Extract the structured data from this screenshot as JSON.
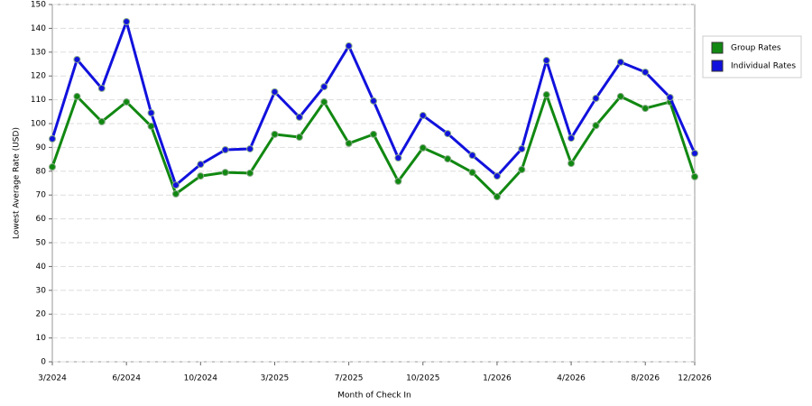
{
  "chart_data": {
    "type": "line",
    "x_label": "Month of Check In",
    "y_label": "Lowest Average Rate (USD)",
    "categories": [
      "3/2024",
      null,
      null,
      "6/2024",
      null,
      null,
      "10/2024",
      null,
      null,
      "3/2025",
      null,
      null,
      "7/2025",
      null,
      null,
      "10/2025",
      null,
      null,
      "1/2026",
      null,
      null,
      "4/2026",
      null,
      null,
      "8/2026",
      null,
      "12/2026"
    ],
    "series": [
      {
        "name": "Group Rates",
        "color": "#118811",
        "values": [
          81.8,
          111.4,
          100.8,
          109.1,
          98.9,
          70.5,
          78,
          79.5,
          79.2,
          95.5,
          94.3,
          109.1,
          91.7,
          95.5,
          75.8,
          89.8,
          85.2,
          79.5,
          69.3,
          80.7,
          112.1,
          83.3,
          99.2,
          111.4,
          106.4,
          109.1,
          77.7
        ]
      },
      {
        "name": "Individual Rates",
        "color": "#1111dd",
        "values": [
          93.6,
          126.9,
          114.8,
          142.8,
          104.5,
          74.2,
          82.9,
          89,
          89.4,
          113.3,
          102.7,
          115.5,
          132.6,
          109.5,
          85.6,
          103.4,
          95.8,
          86.7,
          78,
          89.4,
          126.5,
          93.9,
          110.6,
          125.8,
          121.6,
          111,
          87.5
        ]
      }
    ],
    "ylim": [
      0,
      150
    ],
    "yticks": [
      0,
      10,
      20,
      30,
      40,
      50,
      60,
      70,
      80,
      90,
      100,
      110,
      120,
      130,
      140,
      150
    ],
    "grid": true,
    "legend": "right"
  }
}
